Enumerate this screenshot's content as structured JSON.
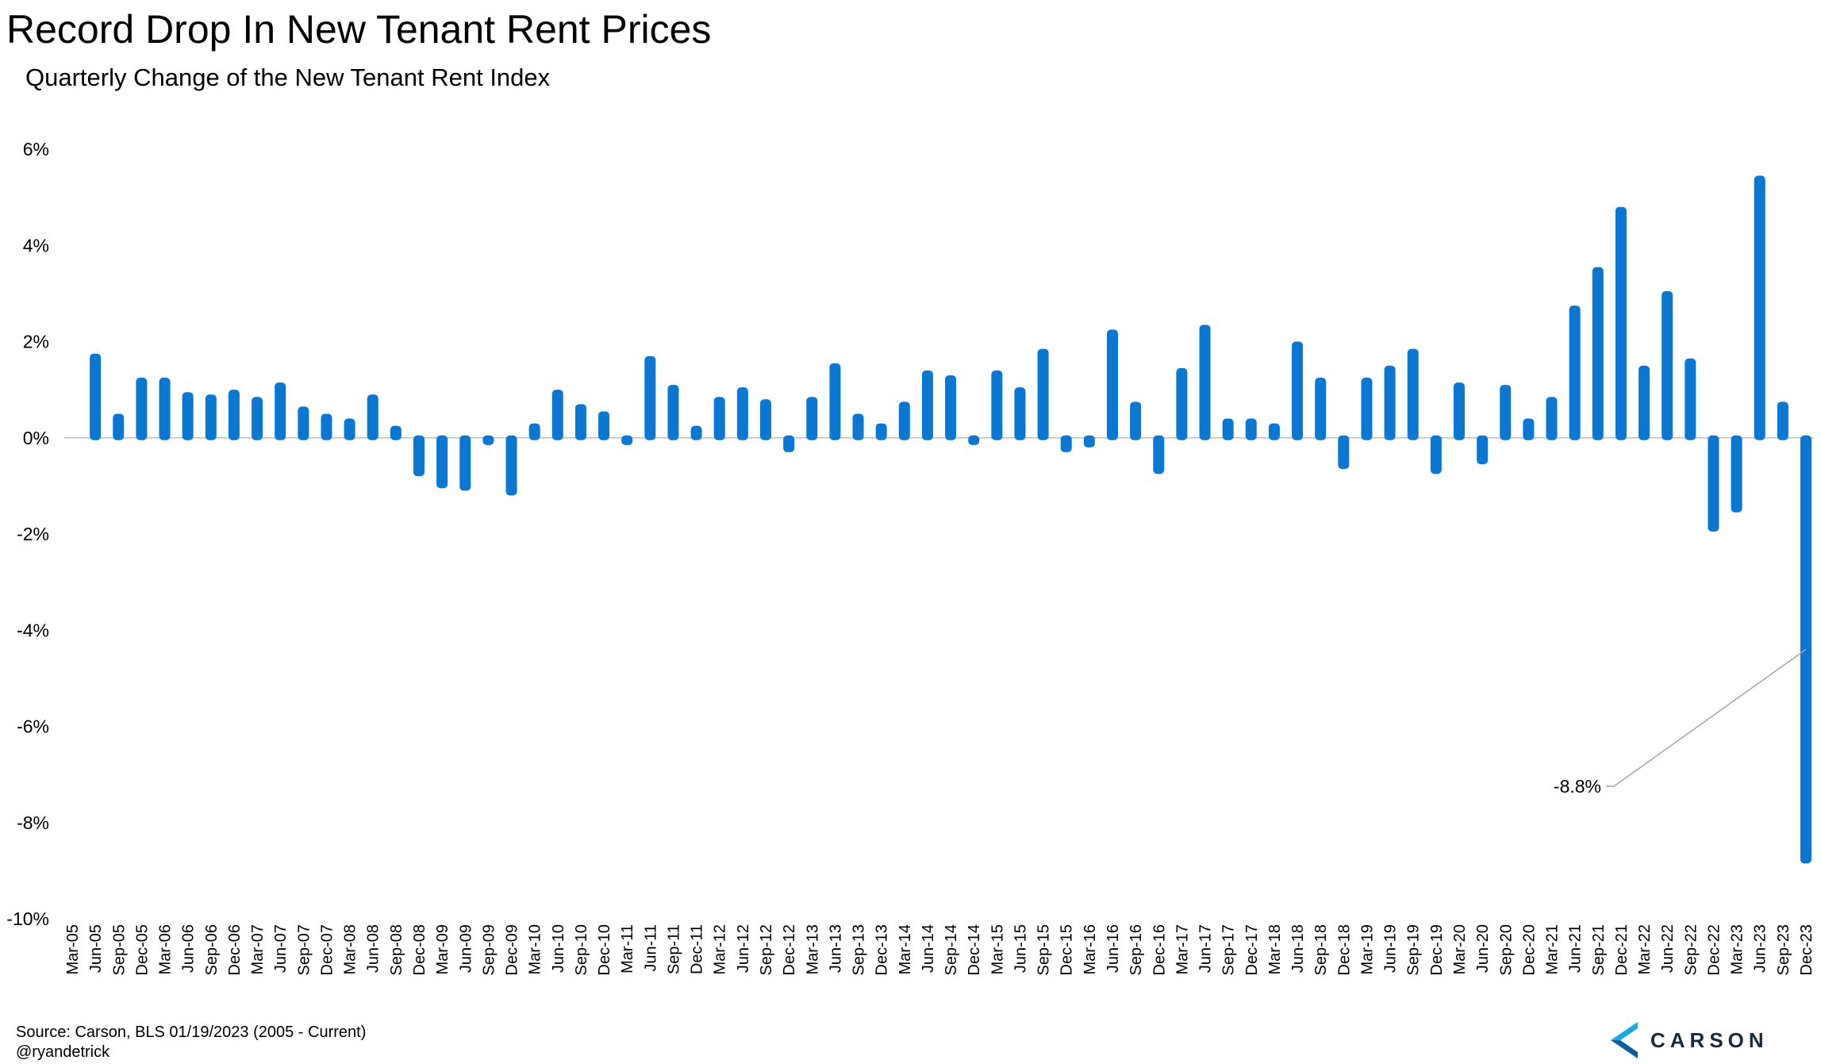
{
  "title": "Record Drop In New Tenant Rent Prices",
  "subtitle": "Quarterly Change of the New Tenant Rent Index",
  "source": "Source: Carson, BLS 01/19/2023 (2005 - Current)",
  "handle": "@ryandetrick",
  "logo_text": "CARSON",
  "colors": {
    "bar": "#0A78D2",
    "axis": "#BFBFBF",
    "annotation_line": "#A6A6A6"
  },
  "chart_data": {
    "type": "bar",
    "title": "Record Drop In New Tenant Rent Prices",
    "ylabel": "",
    "xlabel": "",
    "ylim": [
      -10,
      6
    ],
    "yticks": [
      6,
      4,
      2,
      0,
      -2,
      -4,
      -6,
      -8,
      -10
    ],
    "ytick_labels": [
      "6%",
      "4%",
      "2%",
      "0%",
      "-2%",
      "-4%",
      "-6%",
      "-8%",
      "-10%"
    ],
    "categories": [
      "Mar-05",
      "Jun-05",
      "Sep-05",
      "Dec-05",
      "Mar-06",
      "Jun-06",
      "Sep-06",
      "Dec-06",
      "Mar-07",
      "Jun-07",
      "Sep-07",
      "Dec-07",
      "Mar-08",
      "Jun-08",
      "Sep-08",
      "Dec-08",
      "Mar-09",
      "Jun-09",
      "Sep-09",
      "Dec-09",
      "Mar-10",
      "Jun-10",
      "Sep-10",
      "Dec-10",
      "Mar-11",
      "Jun-11",
      "Sep-11",
      "Dec-11",
      "Mar-12",
      "Jun-12",
      "Sep-12",
      "Dec-12",
      "Mar-13",
      "Jun-13",
      "Sep-13",
      "Dec-13",
      "Mar-14",
      "Jun-14",
      "Sep-14",
      "Dec-14",
      "Mar-15",
      "Jun-15",
      "Sep-15",
      "Dec-15",
      "Mar-16",
      "Jun-16",
      "Sep-16",
      "Dec-16",
      "Mar-17",
      "Jun-17",
      "Sep-17",
      "Dec-17",
      "Mar-18",
      "Jun-18",
      "Sep-18",
      "Dec-18",
      "Mar-19",
      "Jun-19",
      "Sep-19",
      "Dec-19",
      "Mar-20",
      "Jun-20",
      "Sep-20",
      "Dec-20",
      "Mar-21",
      "Jun-21",
      "Sep-21",
      "Dec-21",
      "Mar-22",
      "Jun-22",
      "Sep-22",
      "Dec-22",
      "Mar-23",
      "Jun-23",
      "Sep-23",
      "Dec-23"
    ],
    "values": [
      null,
      1.7,
      0.45,
      1.2,
      1.2,
      0.9,
      0.85,
      0.95,
      0.8,
      1.1,
      0.6,
      0.45,
      0.35,
      0.85,
      0.2,
      -0.75,
      -1.0,
      -1.05,
      -0.1,
      -1.15,
      0.25,
      0.95,
      0.65,
      0.5,
      -0.1,
      1.65,
      1.05,
      0.2,
      0.8,
      1.0,
      0.75,
      -0.25,
      0.8,
      1.5,
      0.45,
      0.25,
      0.7,
      1.35,
      1.25,
      -0.1,
      1.35,
      1.0,
      1.8,
      -0.25,
      -0.15,
      2.2,
      0.7,
      -0.7,
      1.4,
      2.3,
      0.35,
      0.35,
      0.25,
      1.95,
      1.2,
      -0.6,
      1.2,
      1.45,
      1.8,
      -0.7,
      1.1,
      -0.5,
      1.05,
      0.35,
      0.8,
      2.7,
      3.5,
      4.75,
      1.45,
      3.0,
      1.6,
      -1.9,
      -1.5,
      5.4,
      0.7,
      -8.8
    ],
    "annotations": [
      {
        "category": "Dec-23",
        "text": "-8.8%"
      }
    ],
    "grid": false,
    "legend": "none"
  }
}
